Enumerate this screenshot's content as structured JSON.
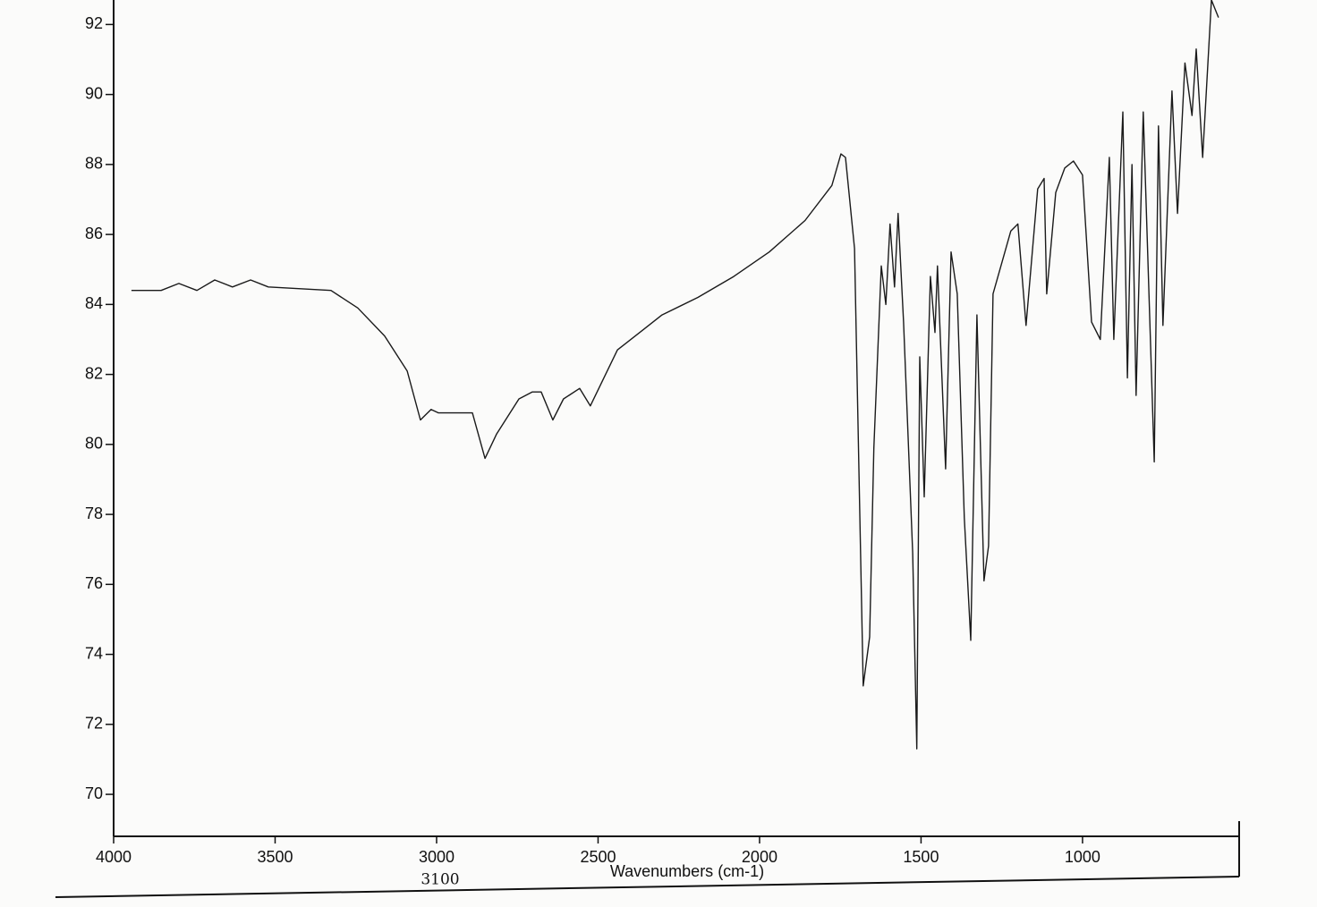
{
  "chart_data": {
    "type": "line",
    "xlabel": "Wavenumbers (cm-1)",
    "annotation": "3100",
    "x": [
      3945,
      3853,
      3798,
      3742,
      3687,
      3632,
      3576,
      3521,
      3327,
      3244,
      3161,
      3091,
      3050,
      3017,
      2994,
      2911,
      2889,
      2850,
      2814,
      2745,
      2704,
      2676,
      2640,
      2607,
      2557,
      2524,
      2440,
      2357,
      2302,
      2191,
      2080,
      1970,
      1859,
      1776,
      1748,
      1734,
      1706,
      1679,
      1659,
      1646,
      1623,
      1609,
      1596,
      1582,
      1571,
      1554,
      1526,
      1513,
      1504,
      1490,
      1471,
      1457,
      1449,
      1424,
      1407,
      1388,
      1366,
      1346,
      1327,
      1305,
      1291,
      1277,
      1222,
      1200,
      1175,
      1139,
      1119,
      1111,
      1083,
      1055,
      1028,
      1000,
      972,
      945,
      917,
      903,
      875,
      861,
      847,
      834,
      812,
      778,
      765,
      751,
      723,
      706,
      683,
      661,
      648,
      628,
      601,
      579
    ],
    "values": [
      84.4,
      84.4,
      84.6,
      84.4,
      84.7,
      84.5,
      84.7,
      84.5,
      84.4,
      83.9,
      83.1,
      82.1,
      80.7,
      81.0,
      80.9,
      80.9,
      80.9,
      79.6,
      80.3,
      81.3,
      81.5,
      81.5,
      80.7,
      81.3,
      81.6,
      81.1,
      82.7,
      83.3,
      83.7,
      84.2,
      84.8,
      85.5,
      86.4,
      87.4,
      88.3,
      88.2,
      85.6,
      73.1,
      74.5,
      79.9,
      85.1,
      84.0,
      86.3,
      84.5,
      86.6,
      83.5,
      76.9,
      71.3,
      82.5,
      78.5,
      84.8,
      83.2,
      85.1,
      79.3,
      85.5,
      84.3,
      77.9,
      74.4,
      83.7,
      76.1,
      77.1,
      84.3,
      86.1,
      86.3,
      83.4,
      87.3,
      87.6,
      84.3,
      87.2,
      87.9,
      88.1,
      87.7,
      83.5,
      83.0,
      88.2,
      83.0,
      89.5,
      81.9,
      88.0,
      81.4,
      89.5,
      79.5,
      89.1,
      83.4,
      90.1,
      86.6,
      90.9,
      89.4,
      91.3,
      88.2,
      92.7,
      92.2
    ],
    "color": "#1a1a1a",
    "xlim": [
      4000,
      515
    ],
    "xticks": [
      4000,
      3500,
      3000,
      2500,
      2000,
      1500,
      1000
    ],
    "ylim": [
      68.8,
      92.7
    ],
    "yticks": [
      70,
      72,
      74,
      76,
      78,
      80,
      82,
      84,
      86,
      88,
      90,
      92
    ]
  }
}
